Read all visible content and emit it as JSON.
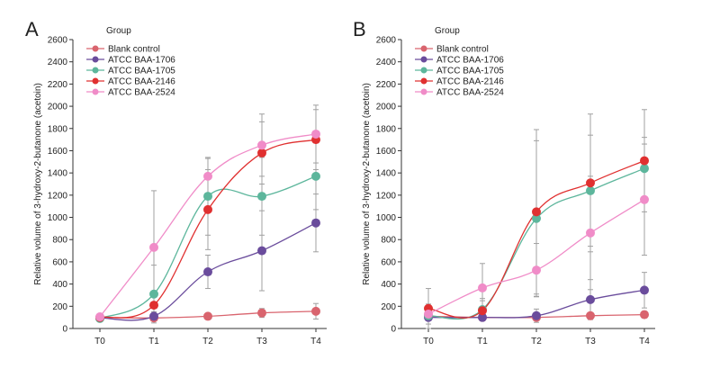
{
  "chart_data": [
    {
      "type": "line",
      "panel_label": "A",
      "legend_title": "Group",
      "ylabel": "Relative volume of 3-hydroxy-2-butanone (acetoin)",
      "xlabel": "",
      "categories": [
        "T0",
        "T1",
        "T2",
        "T3",
        "T4"
      ],
      "ylim": [
        0,
        2600
      ],
      "yticks": [
        0,
        200,
        400,
        600,
        800,
        1000,
        1200,
        1400,
        1600,
        1800,
        2000,
        2200,
        2400,
        2600
      ],
      "grid": false,
      "legend_position": "top-left",
      "series": [
        {
          "name": "Blank control",
          "color": "#d9646e",
          "values": [
            100,
            95,
            110,
            140,
            155
          ],
          "errors": [
            25,
            20,
            25,
            40,
            70
          ]
        },
        {
          "name": "ATCC BAA-1706",
          "color": "#6a4c9c",
          "values": [
            95,
            110,
            510,
            700,
            950
          ],
          "errors": [
            30,
            40,
            150,
            360,
            260
          ]
        },
        {
          "name": "ATCC BAA-1705",
          "color": "#5db69c",
          "values": [
            90,
            310,
            1190,
            1190,
            1370
          ],
          "errors": [
            30,
            260,
            350,
            350,
            300
          ]
        },
        {
          "name": "ATCC BAA-2146",
          "color": "#e03030",
          "values": [
            100,
            210,
            1070,
            1580,
            1700
          ],
          "errors": [
            30,
            110,
            360,
            280,
            270
          ]
        },
        {
          "name": "ATCC BAA-2524",
          "color": "#f08cc8",
          "values": [
            105,
            730,
            1370,
            1650,
            1750
          ],
          "errors": [
            25,
            510,
            160,
            280,
            260
          ]
        }
      ]
    },
    {
      "type": "line",
      "panel_label": "B",
      "legend_title": "Group",
      "ylabel": "Relative volume of 3-hydroxy-2-butanone (acetoin)",
      "xlabel": "",
      "categories": [
        "T0",
        "T1",
        "T2",
        "T3",
        "T4"
      ],
      "ylim": [
        0,
        2600
      ],
      "yticks": [
        0,
        200,
        400,
        600,
        800,
        1000,
        1200,
        1400,
        1600,
        1800,
        2000,
        2200,
        2400,
        2600
      ],
      "grid": false,
      "legend_position": "top-left",
      "series": [
        {
          "name": "Blank control",
          "color": "#d9646e",
          "values": [
            110,
            100,
            100,
            115,
            125
          ],
          "errors": [
            20,
            20,
            20,
            25,
            30
          ]
        },
        {
          "name": "ATCC BAA-1706",
          "color": "#6a4c9c",
          "values": [
            100,
            100,
            115,
            260,
            345
          ],
          "errors": [
            25,
            25,
            60,
            180,
            160
          ]
        },
        {
          "name": "ATCC BAA-1705",
          "color": "#5db69c",
          "values": [
            115,
            170,
            990,
            1240,
            1440
          ],
          "errors": [
            40,
            100,
            700,
            500,
            280
          ]
        },
        {
          "name": "ATCC BAA-2146",
          "color": "#e03030",
          "values": [
            180,
            160,
            1050,
            1310,
            1510
          ],
          "errors": [
            180,
            90,
            740,
            620,
            460
          ]
        },
        {
          "name": "ATCC BAA-2524",
          "color": "#f08cc8",
          "values": [
            130,
            365,
            525,
            860,
            1160
          ],
          "errors": [
            90,
            220,
            240,
            510,
            500
          ]
        }
      ]
    }
  ]
}
